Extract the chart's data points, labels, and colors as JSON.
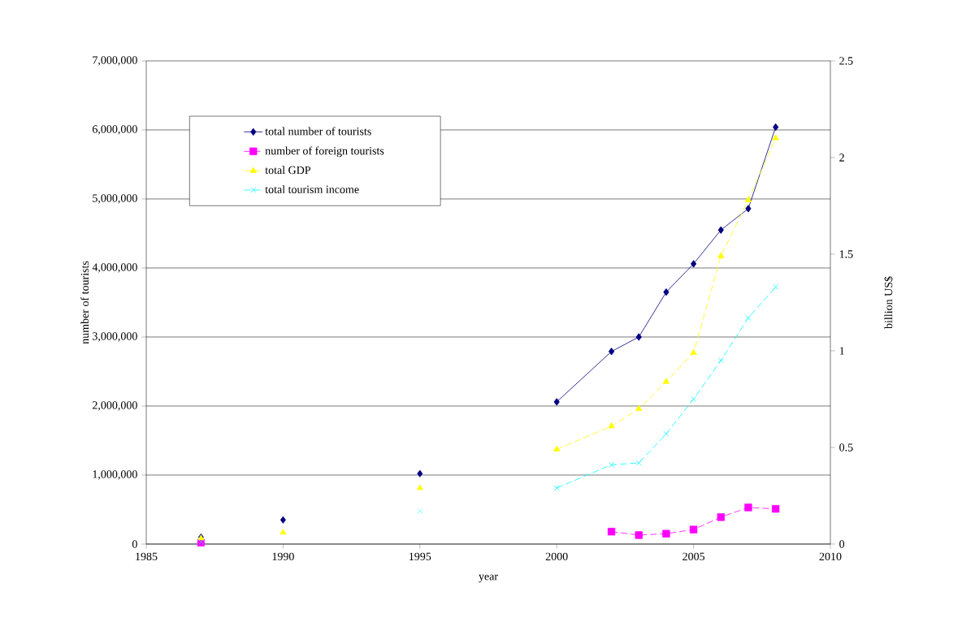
{
  "chart_data": {
    "type": "line",
    "xlabel": "year",
    "ylabel": "number of tourists",
    "y2label": "billion US$",
    "xlim": [
      1985,
      2010
    ],
    "xticks": [
      1985,
      1990,
      1995,
      2000,
      2005,
      2010
    ],
    "ylim": [
      0,
      7000000
    ],
    "yticks": [
      0,
      {
        "value": 1000000,
        "label": "1,000,000"
      },
      {
        "value": 2000000,
        "label": "2,000,000"
      },
      {
        "value": 3000000,
        "label": "3,000,000"
      },
      {
        "value": 4000000,
        "label": "4,000,000"
      },
      {
        "value": 5000000,
        "label": "5,000,000"
      },
      {
        "value": 6000000,
        "label": "6,000,000"
      },
      {
        "value": 7000000,
        "label": "7,000,000"
      }
    ],
    "y2lim": [
      0,
      2.5
    ],
    "y2ticks": [
      0,
      0.5,
      1,
      1.5,
      2,
      2.5
    ],
    "grid": "y",
    "legend": "top left",
    "series": [
      {
        "name": "total number of tourists",
        "color": "#000080",
        "marker": "diamond",
        "line_style": "solid",
        "x": [
          2000,
          2002,
          2003,
          2004,
          2005,
          2006,
          2007,
          2008
        ],
        "values": [
          2060000,
          2790000,
          3000000,
          3650000,
          4060000,
          4550000,
          4860000,
          6040000
        ]
      },
      {
        "name": "number of foreign tourists",
        "color": "#ff00ff",
        "marker": "square",
        "line_style": "dashed",
        "x": [
          2002,
          2003,
          2004,
          2005,
          2006,
          2007,
          2008
        ],
        "values": [
          180000,
          130000,
          150000,
          210000,
          390000,
          530000,
          510000
        ]
      },
      {
        "name": "total GDP",
        "color": "#ffff00",
        "marker": "triangle",
        "line_style": "dashed",
        "axis": "y2",
        "x": [
          2000,
          2002,
          2003,
          2004,
          2005,
          2006,
          2007,
          2008
        ],
        "values": [
          0.49,
          0.61,
          0.7,
          0.84,
          0.99,
          1.49,
          1.78,
          2.1
        ]
      },
      {
        "name": "total tourism income",
        "color": "#00ffff",
        "marker": "cross",
        "line_style": "dashed",
        "axis": "y2",
        "x": [
          2000,
          2002,
          2003,
          2004,
          2005,
          2006,
          2007,
          2008
        ],
        "values": [
          0.29,
          0.41,
          0.42,
          0.57,
          0.75,
          0.95,
          1.17,
          1.33
        ]
      },
      {
        "type": "scatter",
        "color": "#000080",
        "marker": "diamond",
        "x": [
          1987,
          1990,
          1995
        ],
        "values": [
          100000,
          350000,
          1020000
        ]
      },
      {
        "type": "scatter",
        "color": "#ff00ff",
        "marker": "square",
        "x": [
          1987
        ],
        "values": [
          20000
        ]
      },
      {
        "type": "scatter",
        "color": "#ffff00",
        "marker": "triangle",
        "axis": "y2",
        "x": [
          1987,
          1990,
          1995
        ],
        "values": [
          0.03,
          0.06,
          0.29
        ]
      },
      {
        "type": "scatter",
        "color": "#00ffff",
        "marker": "cross",
        "axis": "y2",
        "x": [
          1987,
          1995
        ],
        "values": [
          0.01,
          0.17
        ]
      }
    ]
  }
}
